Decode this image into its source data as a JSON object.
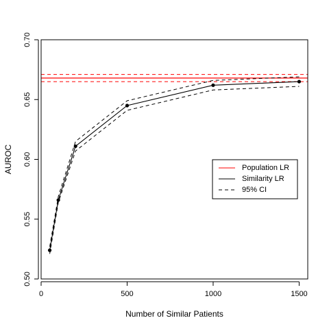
{
  "chart_data": {
    "type": "line",
    "title": "",
    "xlabel": "Number of Similar Patients",
    "ylabel": "AUROC",
    "xlim": [
      0,
      1550
    ],
    "ylim": [
      0.5,
      0.7
    ],
    "xticks": [
      0,
      500,
      1000,
      1500
    ],
    "xtick_labels": [
      "0",
      "500",
      "1000",
      "1500"
    ],
    "yticks": [
      0.5,
      0.55,
      0.6,
      0.65,
      0.7
    ],
    "ytick_labels": [
      "0.50",
      "0.55",
      "0.60",
      "0.65",
      "0.70"
    ],
    "grid": false,
    "legend_position": "right",
    "series": [
      {
        "name": "Population LR",
        "color": "#ff0000",
        "style": "solid",
        "type": "hline",
        "value": 0.668
      },
      {
        "name": "Similarity LR",
        "color": "#000000",
        "style": "solid",
        "markers": true,
        "x": [
          50,
          100,
          200,
          500,
          1000,
          1500
        ],
        "y": [
          0.524,
          0.566,
          0.611,
          0.645,
          0.662,
          0.665
        ]
      },
      {
        "name": "95% CI",
        "color": "#000000",
        "style": "dashed",
        "bands": [
          {
            "of": "Similarity LR",
            "x": [
              50,
              100,
              200,
              500,
              1000,
              1500
            ],
            "lower": [
              0.521,
              0.564,
              0.607,
              0.641,
              0.658,
              0.661
            ],
            "upper": [
              0.527,
              0.569,
              0.615,
              0.649,
              0.666,
              0.669
            ]
          }
        ],
        "population_band": {
          "lower": 0.665,
          "upper": 0.671,
          "color": "#ff0000"
        }
      }
    ],
    "legend": [
      {
        "label": "Population LR",
        "color": "#ff0000",
        "style": "solid"
      },
      {
        "label": "Similarity LR",
        "color": "#000000",
        "style": "solid"
      },
      {
        "label": "95% CI",
        "color": "#000000",
        "style": "dashed"
      }
    ]
  }
}
